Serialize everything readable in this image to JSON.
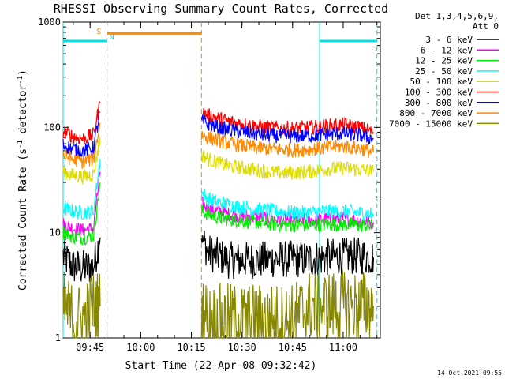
{
  "chart_data": {
    "type": "line",
    "title": "RHESSI Observing Summary Count Rates, Corrected",
    "xlabel": "Start Time (22-Apr-08 09:32:42)",
    "ylabel": "Corrected Count Rate (s⁻¹ detector⁻¹)",
    "ylabel_main": "Corrected Count Rate (s",
    "ylabel_sup1": "-1",
    "ylabel_mid": " detector",
    "ylabel_sup2": "-1",
    "ylabel_end": ")",
    "yscale": "log",
    "ylim": [
      1,
      1000
    ],
    "xlim": [
      "09:37:00",
      "11:11:00"
    ],
    "x_ticks": [
      "09:45",
      "10:00",
      "10:15",
      "10:30",
      "10:45",
      "11:00"
    ],
    "y_ticks": [
      "1",
      "10",
      "100",
      "1000"
    ],
    "legend_position": "right",
    "legend_header": [
      "Det 1,3,4,5,6,9,",
      "Att 0"
    ],
    "timestamp": "14-Oct-2021 09:55",
    "annotations": [
      {
        "label": "S",
        "time": "09:49:00",
        "color": "#ff8800"
      },
      {
        "label": "N",
        "time": "09:50:00",
        "color": "#00e0e0"
      }
    ],
    "night_intervals": [
      [
        "09:37:00",
        "09:50:00"
      ],
      [
        "10:53:00",
        "11:10:00"
      ]
    ],
    "saa_intervals": [
      [
        "09:50:00",
        "10:18:00"
      ]
    ],
    "series": [
      {
        "name": "3 - 6 keV",
        "color": "#000000",
        "x": [
          "09:37",
          "09:40",
          "09:43",
          "09:46",
          "09:48",
          "10:18",
          "10:20",
          "10:23",
          "10:26",
          "10:30",
          "10:35",
          "10:40",
          "10:45",
          "10:50",
          "10:55",
          "11:00",
          "11:05",
          "11:09"
        ],
        "y": [
          6,
          4.8,
          4.6,
          4.8,
          9,
          9,
          6.5,
          6,
          5.5,
          5.5,
          5.5,
          5.6,
          5.6,
          5.6,
          5.8,
          6,
          6,
          5.8
        ]
      },
      {
        "name": "6 - 12 keV",
        "color": "#ff00ff",
        "x": [
          "09:37",
          "09:40",
          "09:43",
          "09:46",
          "09:48",
          "10:18",
          "10:20",
          "10:23",
          "10:26",
          "10:30",
          "10:35",
          "10:40",
          "10:45",
          "10:50",
          "10:55",
          "11:00",
          "11:05",
          "11:09"
        ],
        "y": [
          12,
          11,
          10.5,
          11,
          38,
          19,
          17,
          16,
          15,
          14.5,
          14,
          13.5,
          13.3,
          13.2,
          13.5,
          13.5,
          13,
          12.5
        ]
      },
      {
        "name": "12 - 25 keV",
        "color": "#00ee00",
        "x": [
          "09:37",
          "09:40",
          "09:43",
          "09:46",
          "09:48",
          "10:18",
          "10:20",
          "10:23",
          "10:26",
          "10:30",
          "10:35",
          "10:40",
          "10:45",
          "10:50",
          "10:55",
          "11:00",
          "11:05",
          "11:09"
        ],
        "y": [
          10,
          9.2,
          9,
          9.4,
          30,
          16,
          15,
          14,
          13.5,
          13,
          12.5,
          12,
          11.8,
          11.8,
          12,
          12,
          11.8,
          11.5
        ]
      },
      {
        "name": "25 - 50 keV",
        "color": "#00ffff",
        "x": [
          "09:37",
          "09:40",
          "09:43",
          "09:46",
          "09:48",
          "10:18",
          "10:20",
          "10:23",
          "10:26",
          "10:30",
          "10:35",
          "10:40",
          "10:45",
          "10:50",
          "10:55",
          "11:00",
          "11:05",
          "11:09"
        ],
        "y": [
          17,
          16,
          15.5,
          16,
          50,
          24,
          21,
          19.5,
          18.5,
          17.5,
          16.5,
          16,
          15.5,
          15.5,
          16,
          16,
          15.5,
          15
        ]
      },
      {
        "name": "50 - 100 keV",
        "color": "#dddd00",
        "x": [
          "09:37",
          "09:40",
          "09:43",
          "09:46",
          "09:48",
          "10:18",
          "10:20",
          "10:23",
          "10:26",
          "10:30",
          "10:35",
          "10:40",
          "10:45",
          "10:50",
          "10:55",
          "11:00",
          "11:05",
          "11:09"
        ],
        "y": [
          38,
          35,
          34,
          36,
          80,
          55,
          50,
          46,
          43,
          41,
          39,
          37,
          37,
          38,
          40,
          41,
          40,
          38
        ]
      },
      {
        "name": "100 - 300 keV",
        "color": "#ff0000",
        "x": [
          "09:37",
          "09:40",
          "09:43",
          "09:46",
          "09:48",
          "10:18",
          "10:20",
          "10:23",
          "10:26",
          "10:30",
          "10:35",
          "10:40",
          "10:45",
          "10:50",
          "10:55",
          "11:00",
          "11:05",
          "11:09"
        ],
        "y": [
          92,
          82,
          78,
          85,
          175,
          140,
          130,
          122,
          114,
          108,
          102,
          99,
          98,
          100,
          103,
          106,
          100,
          90
        ]
      },
      {
        "name": "300 - 800 keV",
        "color": "#0000ff",
        "x": [
          "09:37",
          "09:40",
          "09:43",
          "09:46",
          "09:48",
          "10:18",
          "10:20",
          "10:23",
          "10:26",
          "10:30",
          "10:35",
          "10:40",
          "10:45",
          "10:50",
          "10:55",
          "11:00",
          "11:05",
          "11:09"
        ],
        "y": [
          68,
          62,
          60,
          64,
          140,
          115,
          108,
          100,
          95,
          90,
          86,
          83,
          82,
          83,
          86,
          88,
          84,
          78
        ]
      },
      {
        "name": "800 - 7000 keV",
        "color": "#ff8800",
        "x": [
          "09:37",
          "09:40",
          "09:43",
          "09:46",
          "09:48",
          "10:18",
          "10:20",
          "10:23",
          "10:26",
          "10:30",
          "10:35",
          "10:40",
          "10:45",
          "10:50",
          "10:55",
          "11:00",
          "11:05",
          "11:09"
        ],
        "y": [
          55,
          49,
          47,
          50,
          110,
          85,
          80,
          75,
          71,
          67,
          64,
          62,
          61,
          62,
          64,
          66,
          63,
          58
        ]
      },
      {
        "name": "7000 - 15000 keV",
        "color": "#888800",
        "x": [
          "09:37",
          "09:40",
          "09:43",
          "09:46",
          "09:48",
          "10:18",
          "10:20",
          "10:23",
          "10:26",
          "10:30",
          "10:35",
          "10:40",
          "10:45",
          "10:50",
          "10:55",
          "11:00",
          "11:05",
          "11:09"
        ],
        "y": [
          2,
          1.5,
          1.5,
          2,
          2,
          2,
          1.5,
          1.5,
          1.5,
          1.5,
          1.5,
          1.5,
          1.5,
          2,
          2,
          2,
          2,
          2
        ]
      }
    ]
  }
}
